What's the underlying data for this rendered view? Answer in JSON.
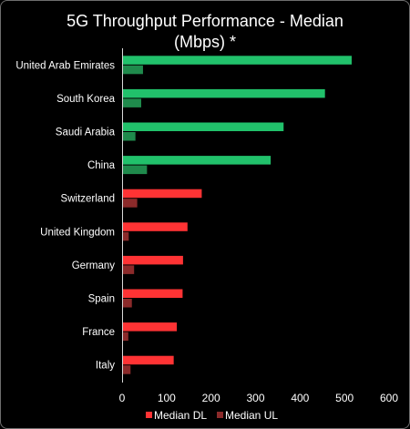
{
  "chart_data": {
    "type": "bar",
    "orientation": "horizontal",
    "title_line1": "5G Throughput Performance - Median",
    "title_line2": "(Mbps) *",
    "categories": [
      "United Arab Emirates",
      "South Korea",
      "Saudi Arabia",
      "China",
      "Switzerland",
      "United Kingdom",
      "Germany",
      "Spain",
      "France",
      "Italy"
    ],
    "series": [
      {
        "name": "Median DL",
        "values": [
          516,
          456,
          363,
          334,
          179,
          147,
          137,
          136,
          123,
          116
        ],
        "colors": [
          "#21c16b",
          "#21c16b",
          "#21c16b",
          "#21c16b",
          "#ff3334",
          "#ff3334",
          "#ff3334",
          "#ff3334",
          "#ff3334",
          "#ff3334"
        ]
      },
      {
        "name": "Median UL",
        "values": [
          47,
          43,
          30,
          56,
          34,
          15,
          27,
          22,
          14,
          19
        ],
        "colors": [
          "#1f8a4c",
          "#1f8a4c",
          "#1f8a4c",
          "#1f8a4c",
          "#8b2a2a",
          "#8b2a2a",
          "#8b2a2a",
          "#8b2a2a",
          "#8b2a2a",
          "#8b2a2a"
        ]
      }
    ],
    "xlim": [
      0,
      600
    ],
    "xticks": [
      0,
      100,
      200,
      300,
      400,
      500,
      600
    ],
    "legend": {
      "position": "bottom",
      "entries": [
        {
          "label": "Median DL",
          "color": "#ff3334"
        },
        {
          "label": "Median UL",
          "color": "#8b2a2a"
        }
      ]
    },
    "grid": false
  }
}
